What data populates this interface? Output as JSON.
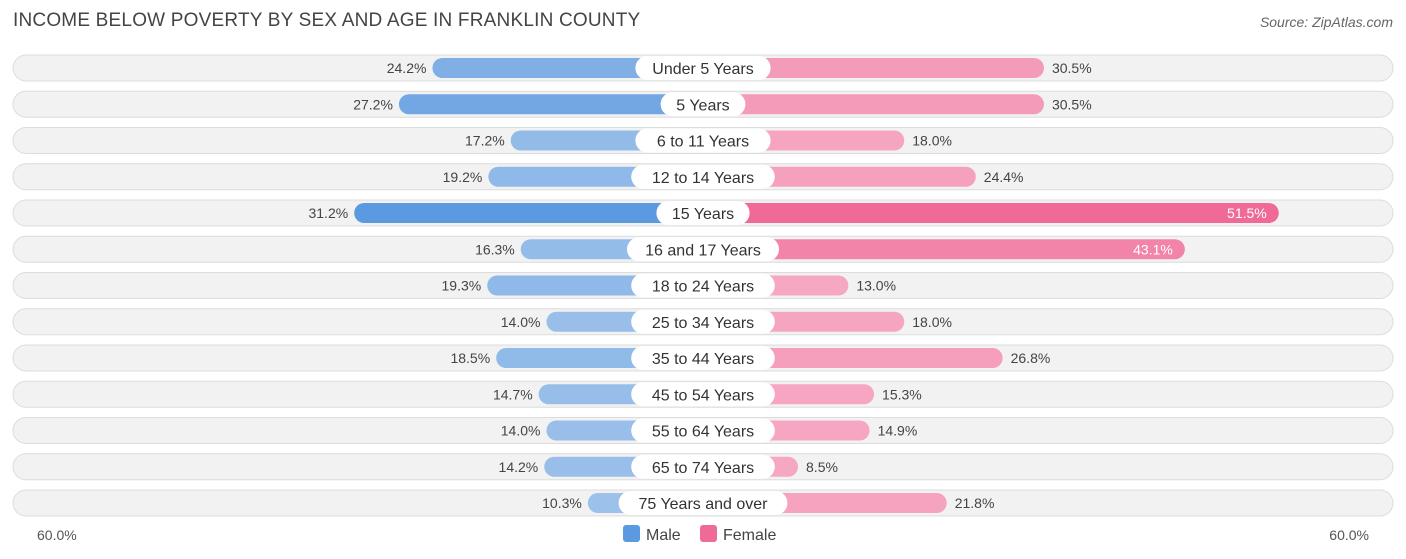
{
  "chart_data": {
    "type": "bar",
    "orientation": "horizontal-diverging",
    "title": "INCOME BELOW POVERTY BY SEX AND AGE IN FRANKLIN COUNTY",
    "source": "Source: ZipAtlas.com",
    "categories": [
      "Under 5 Years",
      "5 Years",
      "6 to 11 Years",
      "12 to 14 Years",
      "15 Years",
      "16 and 17 Years",
      "18 to 24 Years",
      "25 to 34 Years",
      "35 to 44 Years",
      "45 to 54 Years",
      "55 to 64 Years",
      "65 to 74 Years",
      "75 Years and over"
    ],
    "series": [
      {
        "name": "Male",
        "values": [
          24.2,
          27.2,
          17.2,
          19.2,
          31.2,
          16.3,
          19.3,
          14.0,
          18.5,
          14.7,
          14.0,
          14.2,
          10.3
        ],
        "labels": [
          "24.2%",
          "27.2%",
          "17.2%",
          "19.2%",
          "31.2%",
          "16.3%",
          "19.3%",
          "14.0%",
          "18.5%",
          "14.7%",
          "14.0%",
          "14.2%",
          "10.3%"
        ]
      },
      {
        "name": "Female",
        "values": [
          30.5,
          30.5,
          18.0,
          24.4,
          51.5,
          43.1,
          13.0,
          18.0,
          26.8,
          15.3,
          14.9,
          8.5,
          21.8
        ],
        "labels": [
          "30.5%",
          "30.5%",
          "18.0%",
          "24.4%",
          "51.5%",
          "43.1%",
          "13.0%",
          "18.0%",
          "26.8%",
          "15.3%",
          "14.9%",
          "8.5%",
          "21.8%"
        ]
      }
    ],
    "axis_max": 60.0,
    "axis_left_label": "60.0%",
    "axis_right_label": "60.0%",
    "legend_position": "bottom-center",
    "colors": {
      "male_light": "#9ec2ea",
      "male_dark": "#5b9ae0",
      "female_light": "#f6a8c3",
      "female_dark": "#f06a97"
    }
  }
}
